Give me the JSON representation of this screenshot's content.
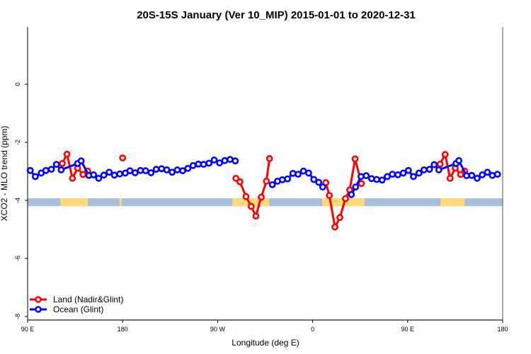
{
  "chart_data": {
    "type": "line",
    "title": "20S-15S January (Ver 10_MIP)   2015-01-01 to 2020-12-31",
    "xlabel": "Longitude (deg E)",
    "ylabel": "XCO2 - MLO trend (ppm)",
    "xlim": [
      90,
      540
    ],
    "ylim": [
      -8.1,
      2
    ],
    "x_ticks": [
      {
        "value": 90,
        "label": "90 E"
      },
      {
        "value": 180,
        "label": "180"
      },
      {
        "value": 270,
        "label": "90 W"
      },
      {
        "value": 360,
        "label": "0"
      },
      {
        "value": 450,
        "label": "90 E"
      },
      {
        "value": 540,
        "label": "180"
      }
    ],
    "y_ticks": [
      {
        "value": 0,
        "label": "0"
      },
      {
        "value": -2,
        "label": "-2"
      },
      {
        "value": -4,
        "label": "-4"
      },
      {
        "value": -6,
        "label": "-6"
      },
      {
        "value": -8,
        "label": "-8"
      }
    ],
    "grid": false,
    "legend_position": "bottom-left",
    "series": [
      {
        "name": "Land (Nadir&Glint)",
        "color": "#ff0000",
        "segments": [
          [
            [
              122.9,
              -2.73
            ],
            [
              127.3,
              -2.41
            ],
            [
              132.5,
              -3.24
            ],
            [
              137.3,
              -2.89
            ],
            [
              142.5,
              -3.11
            ],
            [
              146.9,
              -2.99
            ]
          ],
          [
            [
              180.0,
              -2.54
            ]
          ],
          [
            [
              287.3,
              -3.24
            ],
            [
              291.1,
              -3.36
            ],
            [
              296.9,
              -3.87
            ],
            [
              301.8,
              -4.21
            ],
            [
              306.2,
              -4.54
            ],
            [
              311.3,
              -3.89
            ],
            [
              316.2,
              -3.34
            ],
            [
              319.1,
              -2.56
            ]
          ],
          [
            [
              372.5,
              -3.39
            ],
            [
              375.8,
              -3.83
            ],
            [
              381.1,
              -4.92
            ],
            [
              385.8,
              -4.59
            ],
            [
              391.1,
              -3.94
            ],
            [
              395.1,
              -3.64
            ],
            [
              400.2,
              -2.57
            ],
            [
              406.2,
              -3.42
            ]
          ],
          [
            [
              480.7,
              -2.75
            ],
            [
              485.5,
              -2.42
            ],
            [
              490.2,
              -3.24
            ],
            [
              495.1,
              -2.89
            ],
            [
              500.2,
              -3.11
            ],
            [
              504.0,
              -2.99
            ]
          ]
        ]
      },
      {
        "name": "Ocean (Glint)",
        "color": "#0000ff",
        "segments": [
          [
            [
              92.5,
              -2.97
            ],
            [
              97.3,
              -3.18
            ],
            [
              102.9,
              -3.06
            ],
            [
              107.3,
              -2.97
            ],
            [
              112.5,
              -2.93
            ],
            [
              117.3,
              -2.76
            ],
            [
              121.8,
              -2.95
            ],
            [
              137.3,
              -2.73
            ],
            [
              140.7,
              -2.64
            ],
            [
              148.0,
              -3.14
            ],
            [
              152.5,
              -3.12
            ],
            [
              157.3,
              -3.24
            ],
            [
              162.2,
              -3.13
            ],
            [
              167.3,
              -3.03
            ],
            [
              172.2,
              -3.13
            ],
            [
              177.3,
              -3.09
            ],
            [
              182.5,
              -3.06
            ],
            [
              186.9,
              -2.98
            ],
            [
              191.8,
              -3.05
            ],
            [
              196.9,
              -2.97
            ],
            [
              201.8,
              -2.98
            ],
            [
              206.9,
              -3.05
            ],
            [
              211.8,
              -2.93
            ],
            [
              216.9,
              -2.91
            ],
            [
              221.8,
              -2.95
            ],
            [
              226.9,
              -3.03
            ],
            [
              231.8,
              -2.95
            ],
            [
              236.9,
              -2.98
            ],
            [
              241.8,
              -2.9
            ],
            [
              246.7,
              -2.8
            ],
            [
              251.8,
              -2.75
            ],
            [
              256.7,
              -2.76
            ],
            [
              261.8,
              -2.72
            ],
            [
              266.7,
              -2.61
            ],
            [
              271.8,
              -2.71
            ],
            [
              276.7,
              -2.63
            ],
            [
              281.8,
              -2.59
            ],
            [
              286.7,
              -2.64
            ]
          ],
          [
            [
              321.8,
              -3.46
            ],
            [
              326.7,
              -3.34
            ],
            [
              331.3,
              -3.29
            ],
            [
              336.2,
              -3.26
            ],
            [
              341.3,
              -3.07
            ],
            [
              346.2,
              -3.1
            ],
            [
              351.3,
              -2.99
            ],
            [
              356.2,
              -3.06
            ],
            [
              361.1,
              -3.28
            ],
            [
              365.8,
              -3.38
            ],
            [
              369.5,
              -3.54
            ]
          ],
          [
            [
              396.7,
              -3.8
            ],
            [
              400.7,
              -3.54
            ],
            [
              405.8,
              -3.18
            ],
            [
              410.7,
              -3.15
            ],
            [
              415.8,
              -3.25
            ],
            [
              420.7,
              -3.28
            ],
            [
              425.8,
              -3.3
            ],
            [
              430.7,
              -3.18
            ],
            [
              435.5,
              -3.1
            ],
            [
              440.7,
              -3.12
            ],
            [
              445.8,
              -3.06
            ],
            [
              450.7,
              -2.97
            ],
            [
              455.5,
              -3.18
            ],
            [
              460.7,
              -3.06
            ],
            [
              465.5,
              -2.95
            ],
            [
              470.7,
              -2.93
            ],
            [
              475.1,
              -2.77
            ],
            [
              479.5,
              -2.95
            ],
            [
              495.8,
              -2.73
            ],
            [
              498.5,
              -2.63
            ],
            [
              505.8,
              -3.15
            ],
            [
              510.7,
              -3.14
            ],
            [
              515.8,
              -3.24
            ],
            [
              520.7,
              -3.12
            ],
            [
              525.5,
              -3.03
            ],
            [
              530.2,
              -3.14
            ],
            [
              535.1,
              -3.1
            ]
          ]
        ]
      }
    ],
    "surface_band": {
      "y_range": [
        -4.2,
        -3.93
      ],
      "ocean_color": "#a6bddb",
      "land_color": "#ffd97a",
      "land_ranges": [
        [
          121,
          147
        ],
        [
          177,
          179
        ],
        [
          284,
          319
        ],
        [
          369,
          409
        ],
        [
          481,
          504
        ]
      ]
    }
  }
}
